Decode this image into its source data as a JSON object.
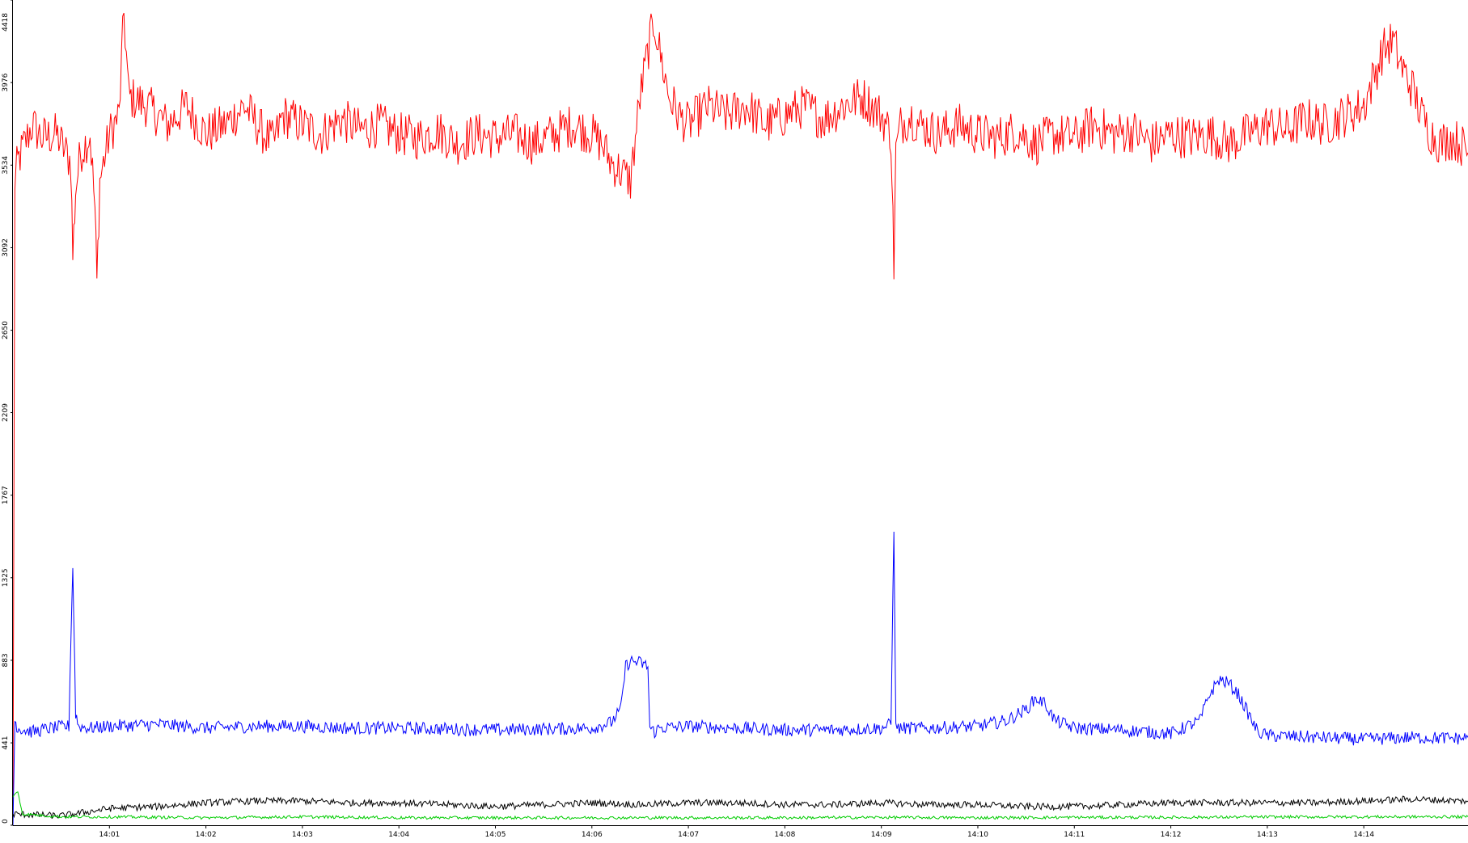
{
  "chart_data": {
    "type": "line",
    "title": "",
    "xlabel": "",
    "ylabel": "",
    "xlim": [
      0,
      15.08
    ],
    "ylim": [
      0,
      4418
    ],
    "y_ticks": [
      0,
      441,
      883,
      1325,
      1767,
      2209,
      2650,
      3092,
      3534,
      3976,
      4418
    ],
    "y_tick_labels": [
      "0",
      "441",
      "883",
      "1325",
      "1767",
      "2209",
      "2650",
      "3092",
      "3534",
      "3976",
      "4418"
    ],
    "x_ticks": [
      1,
      2,
      3,
      4,
      5,
      6,
      7,
      8,
      9,
      10,
      11,
      12,
      13,
      14
    ],
    "x_tick_labels": [
      "14:01",
      "14:02",
      "14:03",
      "14:04",
      "14:05",
      "14:06",
      "14:07",
      "14:08",
      "14:09",
      "14:10",
      "14:11",
      "14:12",
      "14:13",
      "14:14"
    ],
    "grid": false,
    "legend": "none",
    "series": [
      {
        "color": "#ff0000",
        "x": [
          0,
          0.02,
          0.05,
          0.1,
          0.2,
          0.3,
          0.45,
          0.6,
          0.62,
          0.65,
          0.7,
          0.8,
          0.85,
          0.87,
          0.9,
          1.0,
          1.1,
          1.15,
          1.2,
          1.4,
          1.6,
          1.8,
          2.0,
          2.2,
          2.4,
          2.6,
          2.7,
          2.8,
          3.0,
          3.2,
          3.4,
          3.6,
          3.8,
          4.0,
          4.2,
          4.4,
          4.6,
          4.8,
          5.0,
          5.2,
          5.4,
          5.6,
          5.8,
          6.0,
          6.1,
          6.2,
          6.3,
          6.4,
          6.5,
          6.6,
          6.65,
          6.7,
          6.8,
          6.9,
          7.0,
          7.2,
          7.4,
          7.6,
          7.8,
          8.0,
          8.2,
          8.4,
          8.6,
          8.8,
          9.0,
          9.1,
          9.13,
          9.15,
          9.2,
          9.3,
          9.4,
          9.6,
          9.8,
          10.0,
          10.2,
          10.4,
          10.6,
          10.8,
          11.0,
          11.2,
          11.4,
          11.6,
          11.8,
          12.0,
          12.2,
          12.4,
          12.6,
          12.8,
          13.0,
          13.2,
          13.4,
          13.6,
          13.8,
          14.0,
          14.1,
          14.2,
          14.3,
          14.4,
          14.5,
          14.6,
          14.7,
          14.8,
          14.9,
          15.0,
          15.08
        ],
        "y": [
          0,
          3450,
          3550,
          3620,
          3750,
          3680,
          3700,
          3550,
          3050,
          3400,
          3600,
          3700,
          3300,
          2900,
          3450,
          3700,
          3800,
          4350,
          3900,
          3850,
          3750,
          3850,
          3700,
          3750,
          3850,
          3700,
          3650,
          3800,
          3750,
          3700,
          3780,
          3720,
          3750,
          3700,
          3680,
          3720,
          3650,
          3700,
          3680,
          3700,
          3650,
          3700,
          3750,
          3700,
          3650,
          3550,
          3500,
          3450,
          3900,
          4200,
          4300,
          4150,
          3900,
          3800,
          3750,
          3850,
          3800,
          3850,
          3750,
          3800,
          3850,
          3780,
          3850,
          3900,
          3800,
          3700,
          3000,
          3600,
          3750,
          3800,
          3750,
          3700,
          3750,
          3700,
          3680,
          3720,
          3650,
          3700,
          3680,
          3750,
          3700,
          3720,
          3650,
          3700,
          3680,
          3700,
          3650,
          3700,
          3750,
          3720,
          3780,
          3750,
          3800,
          3850,
          4000,
          4150,
          4200,
          4050,
          3950,
          3800,
          3700,
          3650,
          3680,
          3650,
          3600
        ]
      },
      {
        "color": "#0000ff",
        "x": [
          0,
          0.02,
          0.05,
          0.2,
          0.4,
          0.58,
          0.6,
          0.62,
          0.65,
          0.68,
          0.8,
          1.0,
          1.5,
          2.0,
          2.5,
          3.0,
          3.5,
          4.0,
          4.5,
          5.0,
          5.5,
          6.0,
          6.2,
          6.3,
          6.35,
          6.4,
          6.5,
          6.58,
          6.6,
          6.65,
          6.7,
          7.0,
          7.5,
          8.0,
          8.5,
          9.0,
          9.1,
          9.13,
          9.15,
          9.2,
          9.5,
          10.0,
          10.3,
          10.5,
          10.6,
          10.7,
          10.8,
          11.0,
          11.5,
          12.0,
          12.3,
          12.4,
          12.5,
          12.6,
          12.7,
          12.8,
          12.9,
          13.0,
          13.5,
          14.0,
          14.5,
          15.0,
          15.08
        ],
        "y": [
          0,
          560,
          520,
          500,
          520,
          530,
          1000,
          1380,
          600,
          530,
          520,
          530,
          540,
          520,
          530,
          530,
          520,
          520,
          515,
          510,
          515,
          520,
          550,
          620,
          850,
          880,
          870,
          850,
          520,
          500,
          520,
          530,
          520,
          510,
          510,
          520,
          540,
          1600,
          520,
          520,
          520,
          530,
          560,
          620,
          680,
          650,
          560,
          520,
          510,
          490,
          560,
          700,
          780,
          760,
          700,
          600,
          500,
          480,
          470,
          460,
          470,
          465,
          470
        ]
      },
      {
        "color": "#000000",
        "x": [
          0,
          0.5,
          1.0,
          1.5,
          2.0,
          2.5,
          3.0,
          3.5,
          4.0,
          4.5,
          5.0,
          5.5,
          6.0,
          6.5,
          7.0,
          7.5,
          8.0,
          8.5,
          9.0,
          9.5,
          10.0,
          10.5,
          11.0,
          11.5,
          12.0,
          12.5,
          13.0,
          13.5,
          14.0,
          14.5,
          15.0,
          15.08
        ],
        "y": [
          60,
          50,
          90,
          100,
          120,
          130,
          130,
          120,
          120,
          110,
          100,
          110,
          120,
          110,
          120,
          120,
          110,
          110,
          120,
          110,
          110,
          100,
          100,
          110,
          120,
          120,
          120,
          120,
          130,
          140,
          130,
          130
        ]
      },
      {
        "color": "#00cc00",
        "x": [
          0,
          0.05,
          0.1,
          0.5,
          1.0,
          2.0,
          3.0,
          4.0,
          5.0,
          6.0,
          7.0,
          8.0,
          9.0,
          10.0,
          11.0,
          12.0,
          13.0,
          14.0,
          15.0,
          15.08
        ],
        "y": [
          150,
          180,
          60,
          45,
          45,
          40,
          45,
          40,
          40,
          40,
          40,
          40,
          42,
          40,
          42,
          42,
          44,
          45,
          45,
          45
        ]
      }
    ]
  }
}
